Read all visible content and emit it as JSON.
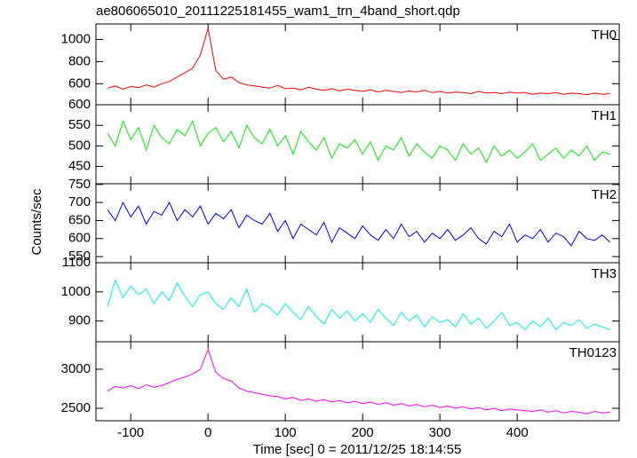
{
  "chart_data": {
    "type": "line",
    "title": "ae806065010_20111225181455_wam1_trn_4band_short.qdp",
    "xlabel": "Time [sec] 0 = 2011/12/25 18:14:55",
    "ylabel": "Counts/sec",
    "xlim": [
      -145,
      532
    ],
    "xticks": [
      -100,
      0,
      100,
      200,
      300,
      400
    ],
    "x": [
      -130,
      -120,
      -110,
      -100,
      -90,
      -80,
      -70,
      -60,
      -50,
      -40,
      -30,
      -20,
      -10,
      0,
      10,
      20,
      30,
      40,
      50,
      60,
      70,
      80,
      90,
      100,
      110,
      120,
      130,
      140,
      150,
      160,
      170,
      180,
      190,
      200,
      210,
      220,
      230,
      240,
      250,
      260,
      270,
      280,
      290,
      300,
      310,
      320,
      330,
      340,
      350,
      360,
      370,
      380,
      390,
      400,
      410,
      420,
      430,
      440,
      450,
      460,
      470,
      480,
      490,
      500,
      510,
      520
    ],
    "series": [
      {
        "name": "TH0",
        "color": "#ff0000",
        "ylim": [
          410,
          1140
        ],
        "yticks": [
          600,
          800,
          1000
        ],
        "values": [
          560,
          580,
          550,
          575,
          565,
          590,
          570,
          600,
          620,
          660,
          700,
          740,
          860,
          1100,
          720,
          640,
          660,
          610,
          590,
          580,
          570,
          560,
          585,
          555,
          560,
          545,
          570,
          550,
          540,
          555,
          535,
          550,
          540,
          530,
          545,
          525,
          540,
          530,
          520,
          535,
          525,
          540,
          520,
          530,
          515,
          525,
          520,
          510,
          530,
          515,
          520,
          510,
          525,
          515,
          520,
          505,
          515,
          510,
          520,
          505,
          515,
          510,
          500,
          515,
          505,
          510
        ]
      },
      {
        "name": "TH1",
        "color": "#00ee00",
        "ylim": [
          408,
          600
        ],
        "yticks": [
          450,
          500,
          550,
          600
        ],
        "values": [
          530,
          500,
          560,
          515,
          545,
          490,
          550,
          520,
          505,
          540,
          525,
          560,
          500,
          530,
          545,
          510,
          535,
          495,
          550,
          520,
          505,
          540,
          500,
          525,
          480,
          535,
          510,
          490,
          520,
          470,
          505,
          495,
          515,
          480,
          510,
          465,
          500,
          490,
          520,
          475,
          505,
          485,
          470,
          500,
          490,
          465,
          505,
          480,
          495,
          460,
          500,
          475,
          490,
          470,
          485,
          505,
          465,
          480,
          495,
          470,
          490,
          475,
          500,
          465,
          485,
          480
        ]
      },
      {
        "name": "TH2",
        "color": "#0000ee",
        "ylim": [
          533,
          752
        ],
        "yticks": [
          550,
          600,
          650,
          700,
          750
        ],
        "values": [
          680,
          650,
          700,
          660,
          690,
          640,
          675,
          665,
          700,
          650,
          680,
          660,
          690,
          640,
          670,
          655,
          680,
          630,
          665,
          650,
          640,
          670,
          620,
          650,
          600,
          640,
          625,
          610,
          645,
          590,
          630,
          615,
          600,
          635,
          610,
          595,
          625,
          600,
          640,
          605,
          620,
          590,
          615,
          600,
          625,
          595,
          610,
          630,
          600,
          585,
          620,
          605,
          640,
          590,
          610,
          600,
          625,
          590,
          615,
          605,
          580,
          620,
          600,
          595,
          610,
          590
        ]
      },
      {
        "name": "TH3",
        "color": "#00f0f0",
        "ylim": [
          829,
          1100
        ],
        "yticks": [
          900,
          1000,
          1100
        ],
        "values": [
          950,
          1040,
          980,
          1020,
          990,
          1010,
          960,
          1000,
          970,
          1030,
          985,
          950,
          990,
          1000,
          960,
          940,
          980,
          950,
          1010,
          930,
          960,
          945,
          920,
          960,
          930,
          905,
          950,
          915,
          890,
          940,
          910,
          935,
          900,
          925,
          895,
          940,
          910,
          885,
          930,
          900,
          920,
          880,
          915,
          895,
          905,
          880,
          925,
          890,
          910,
          875,
          900,
          930,
          885,
          895,
          870,
          900,
          880,
          910,
          870,
          895,
          885,
          905,
          875,
          890,
          880,
          870
        ]
      },
      {
        "name": "TH0123",
        "color": "#ff00ff",
        "ylim": [
          2341,
          3352
        ],
        "yticks": [
          2500,
          3000
        ],
        "values": [
          2720,
          2780,
          2760,
          2790,
          2750,
          2800,
          2770,
          2790,
          2830,
          2870,
          2900,
          2940,
          3000,
          3250,
          2960,
          2880,
          2850,
          2760,
          2720,
          2700,
          2680,
          2660,
          2650,
          2620,
          2640,
          2600,
          2620,
          2590,
          2610,
          2580,
          2600,
          2570,
          2590,
          2560,
          2580,
          2550,
          2570,
          2540,
          2560,
          2530,
          2550,
          2520,
          2540,
          2510,
          2530,
          2500,
          2520,
          2490,
          2510,
          2480,
          2500,
          2470,
          2490,
          2480,
          2470,
          2460,
          2480,
          2450,
          2470,
          2440,
          2460,
          2450,
          2430,
          2460,
          2440,
          2450
        ]
      }
    ]
  }
}
